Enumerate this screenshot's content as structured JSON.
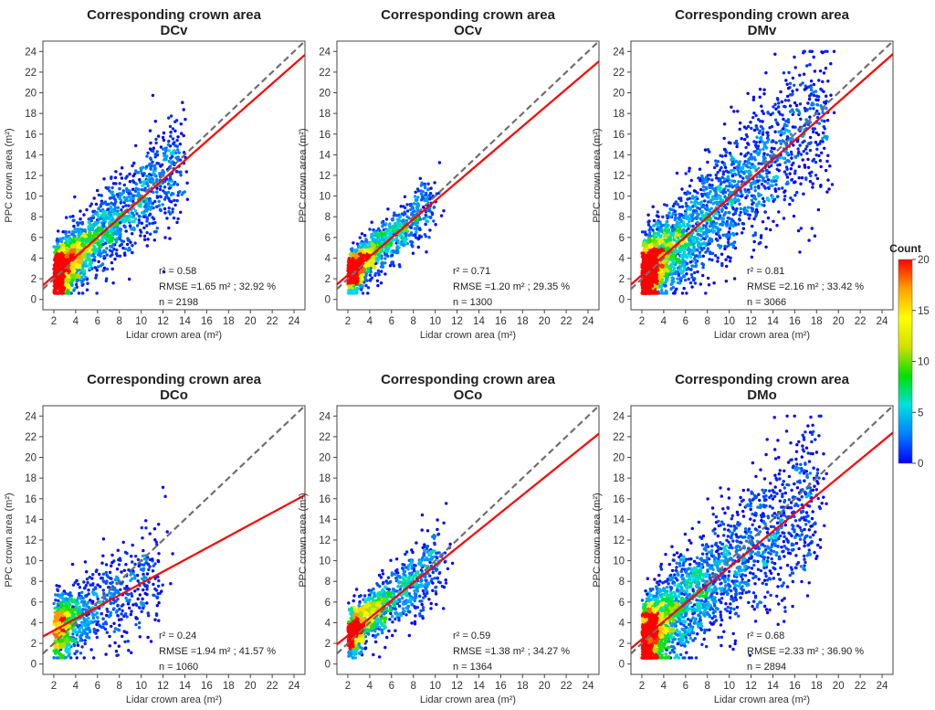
{
  "figure": {
    "colorbar": {
      "title": "Count",
      "ticks": [
        0,
        5,
        10,
        15,
        20
      ],
      "range": [
        0,
        20
      ],
      "colors": [
        "#0000ff",
        "#0080ff",
        "#00e0e0",
        "#00e000",
        "#d0e000",
        "#ffff00",
        "#ffa000",
        "#ff0000"
      ]
    },
    "ref_line_color": "#707070",
    "fit_line_color": "#ff0000"
  },
  "chart_data": [
    {
      "type": "scatter",
      "title": "Corresponding crown area",
      "subtitle": "DCv",
      "xlabel": "Lidar crown area (m²)",
      "ylabel": "PPC crown area (m²)",
      "xlim": [
        1,
        25
      ],
      "ylim": [
        -1,
        25
      ],
      "xticks": [
        2,
        4,
        6,
        8,
        10,
        12,
        14,
        16,
        18,
        20,
        22,
        24
      ],
      "yticks": [
        0,
        2,
        4,
        6,
        8,
        10,
        12,
        14,
        16,
        18,
        20,
        22,
        24
      ],
      "fit": {
        "intercept": 0.43,
        "slope": 0.93
      },
      "cloud": {
        "n": 2198,
        "xmin": 2,
        "xmode": 3.5,
        "xmax": 17,
        "scatter_sd": 1.7
      },
      "stats": {
        "r2": "r² = 0.58",
        "rmse": "RMSE =1.65 m² ; 32.92 %",
        "n": "n = 2198"
      }
    },
    {
      "type": "scatter",
      "title": "Corresponding crown area",
      "subtitle": "OCv",
      "xlabel": "Lidar crown area (m²)",
      "ylabel": "PPC crown area (m²)",
      "xlim": [
        1,
        25
      ],
      "ylim": [
        -1,
        25
      ],
      "xticks": [
        2,
        4,
        6,
        8,
        10,
        12,
        14,
        16,
        18,
        20,
        22,
        24
      ],
      "yticks": [
        0,
        2,
        4,
        6,
        8,
        10,
        12,
        14,
        16,
        18,
        20,
        22,
        24
      ],
      "fit": {
        "intercept": 0.55,
        "slope": 0.9
      },
      "cloud": {
        "n": 1300,
        "xmin": 2,
        "xmode": 3.2,
        "xmax": 12,
        "scatter_sd": 1.2
      },
      "stats": {
        "r2": "r² = 0.71",
        "rmse": "RMSE =1.20 m² ; 29.35 %",
        "n": "n = 1300"
      }
    },
    {
      "type": "scatter",
      "title": "Corresponding crown area",
      "subtitle": "DMv",
      "xlabel": "Lidar crown area (m²)",
      "ylabel": "PPC crown area (m²)",
      "xlim": [
        1,
        25
      ],
      "ylim": [
        -1,
        25
      ],
      "xticks": [
        2,
        4,
        6,
        8,
        10,
        12,
        14,
        16,
        18,
        20,
        22,
        24
      ],
      "yticks": [
        0,
        2,
        4,
        6,
        8,
        10,
        12,
        14,
        16,
        18,
        20,
        22,
        24
      ],
      "fit": {
        "intercept": 0.5,
        "slope": 0.93
      },
      "cloud": {
        "n": 3066,
        "xmin": 2,
        "xmode": 3.8,
        "xmax": 24,
        "scatter_sd": 2.1
      },
      "stats": {
        "r2": "r² = 0.81",
        "rmse": "RMSE =2.16 m² ; 33.42 %",
        "n": "n = 3066"
      }
    },
    {
      "type": "scatter",
      "title": "Corresponding crown area",
      "subtitle": "DCo",
      "xlabel": "Lidar crown area (m²)",
      "ylabel": "PPC crown area (m²)",
      "xlim": [
        1,
        25
      ],
      "ylim": [
        -1,
        25
      ],
      "xticks": [
        2,
        4,
        6,
        8,
        10,
        12,
        14,
        16,
        18,
        20,
        22,
        24
      ],
      "yticks": [
        0,
        2,
        4,
        6,
        8,
        10,
        12,
        14,
        16,
        18,
        20,
        22,
        24
      ],
      "fit": {
        "intercept": 2.1,
        "slope": 0.57
      },
      "cloud": {
        "n": 1060,
        "xmin": 2,
        "xmode": 3.5,
        "xmax": 14.5,
        "scatter_sd": 2.0
      },
      "stats": {
        "r2": "r² = 0.24",
        "rmse": "RMSE =1.94 m² ; 41.57 %",
        "n": "n = 1060"
      }
    },
    {
      "type": "scatter",
      "title": "Corresponding crown area",
      "subtitle": "OCo",
      "xlabel": "Lidar crown area (m²)",
      "ylabel": "PPC crown area (m²)",
      "xlim": [
        1,
        25
      ],
      "ylim": [
        -1,
        25
      ],
      "xticks": [
        2,
        4,
        6,
        8,
        10,
        12,
        14,
        16,
        18,
        20,
        22,
        24
      ],
      "yticks": [
        0,
        2,
        4,
        6,
        8,
        10,
        12,
        14,
        16,
        18,
        20,
        22,
        24
      ],
      "fit": {
        "intercept": 1.05,
        "slope": 0.85
      },
      "cloud": {
        "n": 1364,
        "xmin": 2,
        "xmode": 3.0,
        "xmax": 13,
        "scatter_sd": 1.4
      },
      "stats": {
        "r2": "r² = 0.59",
        "rmse": "RMSE =1.38 m² ; 34.27 %",
        "n": "n = 1364"
      }
    },
    {
      "type": "scatter",
      "title": "Corresponding crown area",
      "subtitle": "DMo",
      "xlabel": "Lidar crown area (m²)",
      "ylabel": "PPC crown area (m²)",
      "xlim": [
        1,
        25
      ],
      "ylim": [
        -1,
        25
      ],
      "xticks": [
        2,
        4,
        6,
        8,
        10,
        12,
        14,
        16,
        18,
        20,
        22,
        24
      ],
      "yticks": [
        0,
        2,
        4,
        6,
        8,
        10,
        12,
        14,
        16,
        18,
        20,
        22,
        24
      ],
      "fit": {
        "intercept": 0.65,
        "slope": 0.87
      },
      "cloud": {
        "n": 2894,
        "xmin": 2,
        "xmode": 3.8,
        "xmax": 23,
        "scatter_sd": 2.3
      },
      "stats": {
        "r2": "r² = 0.68",
        "rmse": "RMSE =2.33 m² ; 36.90 %",
        "n": "n = 2894"
      }
    }
  ]
}
